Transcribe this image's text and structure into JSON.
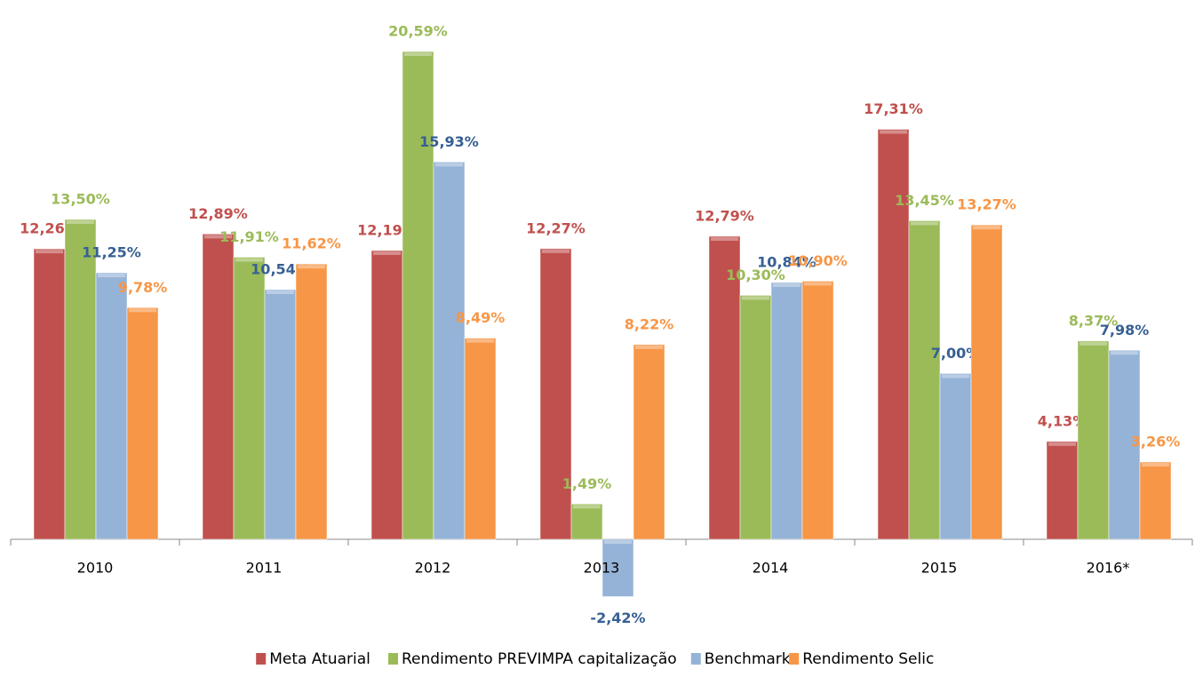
{
  "chart_data": {
    "type": "bar",
    "categories": [
      "2010",
      "2011",
      "2012",
      "2013",
      "2014",
      "2015",
      "2016*"
    ],
    "series": [
      {
        "name": "Meta Atuarial",
        "color": "#c0504d",
        "label_color": "#c0504d",
        "values": [
          12.26,
          12.89,
          12.19,
          12.27,
          12.79,
          17.31,
          4.13
        ],
        "value_labels": [
          "12,26%",
          "12,89%",
          "12,19%",
          "12,27%",
          "12,79%",
          "17,31%",
          "4,13%"
        ]
      },
      {
        "name": "Rendimento PREVIMPA capitalização",
        "color": "#9bbb59",
        "label_color": "#9bbb59",
        "values": [
          13.5,
          11.91,
          20.59,
          1.49,
          10.3,
          13.45,
          8.37
        ],
        "value_labels": [
          "13,50%",
          "11,91%",
          "20,59%",
          "1,49%",
          "10,30%",
          "13,45%",
          "8,37%"
        ]
      },
      {
        "name": "Benchmark",
        "color": "#95b3d7",
        "label_color": "#376092",
        "values": [
          11.25,
          10.54,
          15.93,
          -2.42,
          10.84,
          7.0,
          7.98
        ],
        "value_labels": [
          "11,25%",
          "10,54%",
          "15,93%",
          "-2,42%",
          "10,84%",
          "7,00%",
          "7,98%"
        ]
      },
      {
        "name": "Rendimento Selic",
        "color": "#f79646",
        "label_color": "#f79646",
        "values": [
          9.78,
          11.62,
          8.49,
          8.22,
          10.9,
          13.27,
          3.26
        ],
        "value_labels": [
          "9,78%",
          "11,62%",
          "8,49%",
          "8,22%",
          "10,90%",
          "13,27%",
          "3,26%"
        ]
      }
    ],
    "legend": "bottom"
  }
}
